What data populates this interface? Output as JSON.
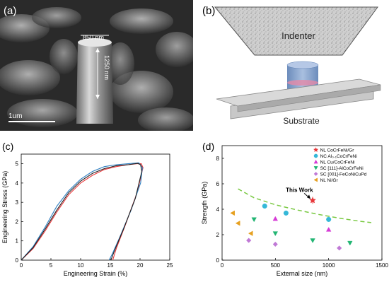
{
  "panels": {
    "a": {
      "label": "(a)",
      "width_label": "850 nm",
      "height_label": "1250 nm",
      "scale_label": "1um"
    },
    "b": {
      "label": "(b)",
      "indenter_label": "Indenter",
      "substrate_label": "Substrate"
    },
    "c": {
      "label": "(c)"
    },
    "d": {
      "label": "(d)",
      "annotation": "This Work"
    }
  },
  "colors": {
    "red": "#e8383b",
    "blue": "#2f7fc1",
    "cyan": "#35b8d8",
    "magenta": "#d63bd6",
    "green": "#22b573",
    "violet": "#c079d6",
    "orange": "#e6a020",
    "dash": "#7ac943"
  },
  "chart_data": [
    {
      "type": "line",
      "panel": "c",
      "xlabel": "Engineering Strain (%)",
      "ylabel": "Engineering Stress (GPa)",
      "xlim": [
        0,
        25
      ],
      "ylim": [
        0,
        5.5
      ],
      "xticks": [
        "0",
        "5",
        "10",
        "15",
        "20",
        "25"
      ],
      "yticks": [
        "0",
        "1",
        "2",
        "3",
        "4",
        "5"
      ],
      "series": [
        {
          "color": "#e8383b",
          "x": [
            0,
            2,
            4,
            6,
            8,
            10,
            12,
            14,
            16,
            18,
            19.5,
            20.2,
            20.5,
            19.5,
            17.5,
            16,
            15.4
          ],
          "y": [
            0,
            0.6,
            1.5,
            2.5,
            3.4,
            4.0,
            4.4,
            4.7,
            4.85,
            4.95,
            5.0,
            5.0,
            4.8,
            3.5,
            1.8,
            0.6,
            0
          ]
        },
        {
          "color": "#2f7fc1",
          "x": [
            0,
            2,
            4,
            6,
            8,
            10,
            12,
            14,
            16,
            18,
            19.8,
            20.4,
            20.1,
            18.5,
            16.6,
            15.3,
            14.8
          ],
          "y": [
            0,
            0.7,
            1.7,
            2.8,
            3.6,
            4.2,
            4.6,
            4.85,
            4.95,
            5.0,
            5.05,
            4.8,
            4.0,
            2.6,
            1.2,
            0.3,
            0
          ]
        },
        {
          "color": "#222222",
          "x": [
            0,
            2,
            4,
            6,
            8,
            10,
            12,
            14,
            16,
            18,
            19.6,
            20.1,
            20.3,
            19.2,
            17.2,
            15.7,
            15.1
          ],
          "y": [
            0,
            0.65,
            1.6,
            2.6,
            3.5,
            4.1,
            4.5,
            4.75,
            4.9,
            4.95,
            5.02,
            4.95,
            4.6,
            3.2,
            1.6,
            0.5,
            0
          ]
        }
      ]
    },
    {
      "type": "scatter",
      "panel": "d",
      "xlabel": "External size (nm)",
      "ylabel": "Strength (GPa)",
      "xlim": [
        0,
        1500
      ],
      "ylim": [
        0,
        9
      ],
      "xticks": [
        "0",
        "500",
        "1000",
        "1500"
      ],
      "yticks": [
        "0",
        "2",
        "4",
        "6",
        "8"
      ],
      "series": [
        {
          "name": "NL CoCrFeNi/Gr",
          "marker": "star",
          "color": "#e8383b",
          "points": [
            [
              850,
              4.7
            ]
          ]
        },
        {
          "name": "NC Al₀.₁CoCrFeNi",
          "marker": "circle",
          "color": "#35b8d8",
          "points": [
            [
              400,
              4.25
            ],
            [
              600,
              3.7
            ],
            [
              1000,
              3.2
            ]
          ]
        },
        {
          "name": "NL Cu/CoCrFeNi",
          "marker": "triangle-up",
          "color": "#d63bd6",
          "points": [
            [
              500,
              3.25
            ],
            [
              1000,
              2.4
            ]
          ]
        },
        {
          "name": "SC [111]-AlCoCrFeNi",
          "marker": "triangle-down",
          "color": "#22b573",
          "points": [
            [
              300,
              3.2
            ],
            [
              500,
              2.1
            ],
            [
              850,
              1.55
            ],
            [
              1200,
              1.35
            ]
          ]
        },
        {
          "name": "SC [001]-FeCoNiCuPd",
          "marker": "diamond",
          "color": "#c079d6",
          "points": [
            [
              250,
              1.55
            ],
            [
              500,
              1.25
            ],
            [
              1100,
              0.95
            ]
          ]
        },
        {
          "name": "NL Ni/Gr",
          "marker": "triangle-left",
          "color": "#e6a020",
          "points": [
            [
              100,
              3.7
            ],
            [
              150,
              2.9
            ],
            [
              270,
              2.1
            ]
          ]
        }
      ],
      "trend": {
        "x": [
          150,
          300,
          500,
          700,
          900,
          1100,
          1300,
          1400
        ],
        "y": [
          5.6,
          4.9,
          4.35,
          3.95,
          3.6,
          3.3,
          3.05,
          2.95
        ]
      }
    }
  ]
}
